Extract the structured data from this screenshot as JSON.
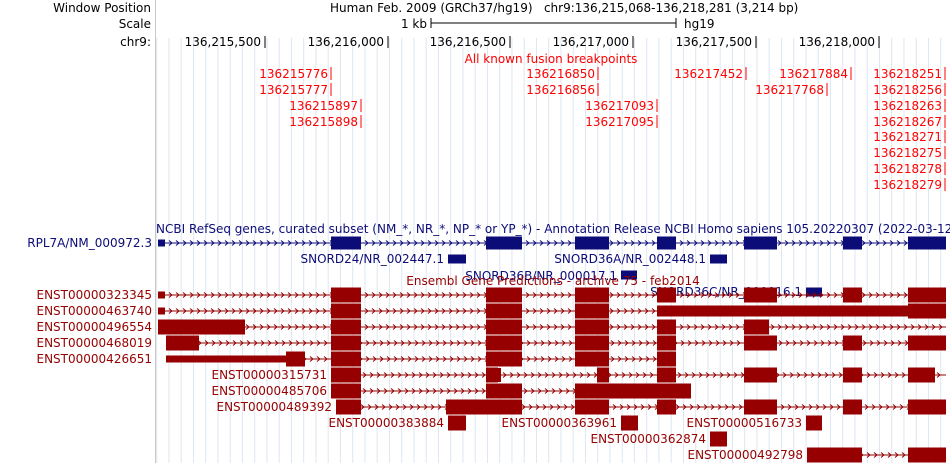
{
  "header": {
    "window_position_label": "Window Position",
    "window_position_value": "Human Feb. 2009 (GRCh37/hg19)   chr9:136,215,068-136,218,281 (3,214 bp)",
    "scale_label": "Scale",
    "scale_bar_label": "1 kb",
    "assembly": "hg19",
    "chrom_label": "chr9:"
  },
  "ruler_ticks": [
    "136,215,500",
    "136,216,000",
    "136,216,500",
    "136,217,000",
    "136,217,500",
    "136,218,000"
  ],
  "fusion_track": {
    "title": "All known fusion breakpoints",
    "color": "#ff0000",
    "breakpoints": [
      "136215776",
      "136215777",
      "136215897",
      "136215898",
      "136216850",
      "136216856",
      "136217093",
      "136217095",
      "136217452",
      "136217884",
      "136217768",
      "136218251",
      "136218256",
      "136218263",
      "136218267",
      "136218271",
      "136218275",
      "136218278",
      "136218279"
    ]
  },
  "refseq_track": {
    "title": "NCBI RefSeq genes, curated subset (NM_*, NR_*, NP_* or YP_*) - Annotation Release NCBI Homo sapiens 105.20220307 (2022-03-12)",
    "color": "#0c0c78",
    "genes": [
      "RPL7A/NM_000972.3",
      "SNORD24/NR_002447.1",
      "SNORD36A/NR_002448.1",
      "SNORD36B/NR_000017.1",
      "SNORD36C/NR_000016.1"
    ]
  },
  "ensembl_track": {
    "title": "Ensembl Gene Predictions - archive 75 - feb2014",
    "color": "#960000",
    "transcripts": [
      "ENST00000323345",
      "ENST00000463740",
      "ENST00000496554",
      "ENST00000468019",
      "ENST00000426651",
      "ENST00000315731",
      "ENST00000485706",
      "ENST00000489392",
      "ENST00000383884",
      "ENST00000363961",
      "ENST00000516733",
      "ENST00000362874",
      "ENST00000492798"
    ]
  }
}
